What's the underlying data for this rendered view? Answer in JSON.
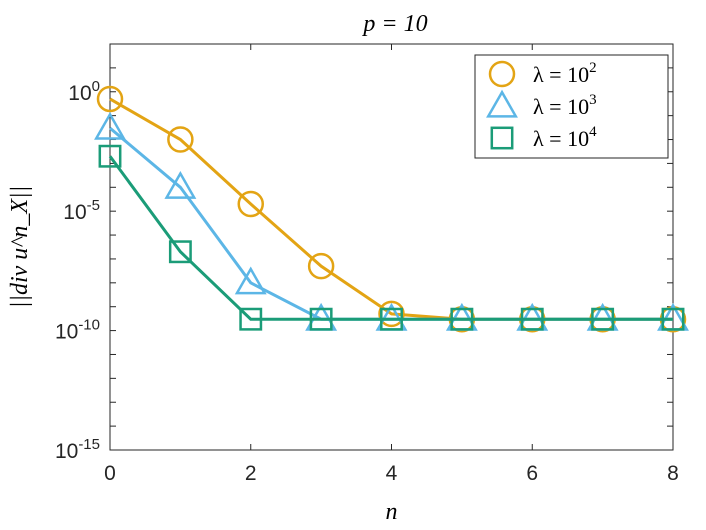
{
  "chart_data": {
    "type": "line",
    "title": "p = 10",
    "xlabel": "n",
    "ylabel": "||div u^n_X||",
    "x": [
      0,
      1,
      2,
      3,
      4,
      5,
      6,
      7,
      8
    ],
    "xlim": [
      0,
      8
    ],
    "xticks": [
      0,
      2,
      4,
      6,
      8
    ],
    "yscale": "log",
    "ylim_exponent": [
      -15,
      2
    ],
    "yticks": [
      {
        "base": "10",
        "exp": "0",
        "value": 1
      },
      {
        "base": "10",
        "exp": "-5",
        "value": 1e-05
      },
      {
        "base": "10",
        "exp": "-10",
        "value": 1e-10
      },
      {
        "base": "10",
        "exp": "-15",
        "value": 1e-15
      }
    ],
    "grid": false,
    "legend_position": "top-right",
    "series": [
      {
        "name": "λ = 10^2",
        "label_main": "λ = 10",
        "label_exp": "2",
        "marker": "circle",
        "color": "#E3A414",
        "values": [
          0.5,
          0.01,
          2e-05,
          5e-08,
          5e-10,
          3e-10,
          3e-10,
          3e-10,
          3e-10
        ]
      },
      {
        "name": "λ = 10^3",
        "label_main": "λ = 10",
        "label_exp": "3",
        "marker": "triangle",
        "color": "#5CB6E6",
        "values": [
          0.03,
          0.0001,
          1e-08,
          3e-10,
          3e-10,
          3e-10,
          3e-10,
          3e-10,
          3e-10
        ]
      },
      {
        "name": "λ = 10^4",
        "label_main": "λ = 10",
        "label_exp": "4",
        "marker": "square",
        "color": "#1B9C78",
        "values": [
          0.002,
          2e-07,
          3e-10,
          3e-10,
          3e-10,
          3e-10,
          3e-10,
          3e-10,
          3e-10
        ]
      }
    ]
  }
}
